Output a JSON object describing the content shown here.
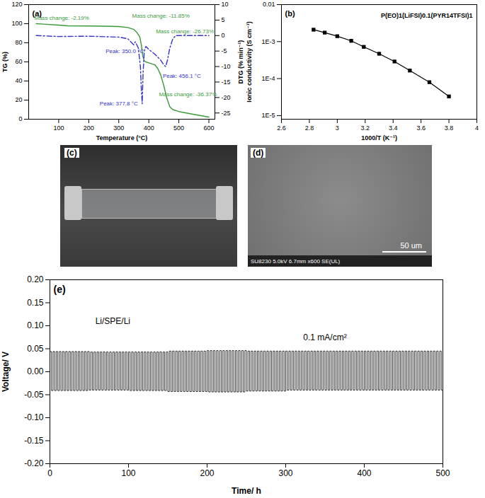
{
  "chart_data": [
    {
      "type": "line",
      "title": "(a)",
      "xlabel": "Temperature (°C)",
      "ylabel": "TG (%)",
      "y2label": "DTG (% min⁻¹)",
      "xlim": [
        0,
        620
      ],
      "xticks": [
        100,
        200,
        300,
        400,
        500,
        600
      ],
      "ylim": [
        0,
        120
      ],
      "yticks": [
        0,
        20,
        40,
        60,
        80,
        100,
        120
      ],
      "y2lim": [
        -27,
        10
      ],
      "y2ticks": [
        -25,
        -20,
        -15,
        -10,
        -5,
        0,
        5,
        10
      ],
      "series": [
        {
          "name": "TG",
          "color": "#3a9a3a",
          "line_style": "solid",
          "x": [
            25,
            50,
            100,
            130,
            200,
            250,
            300,
            330,
            350,
            360,
            370,
            375,
            380,
            385,
            390,
            400,
            420,
            430,
            440,
            450,
            460,
            470,
            480,
            500,
            550,
            600
          ],
          "values": [
            100,
            99.5,
            98.5,
            97.8,
            97.6,
            97.4,
            97,
            96,
            94,
            91,
            86,
            78,
            66,
            61,
            60,
            59,
            57,
            53,
            46,
            35,
            22,
            13,
            10,
            8,
            5,
            2.2
          ]
        },
        {
          "name": "DTG",
          "color": "#3333cc",
          "line_style": "dashdot",
          "axis": "y2",
          "x": [
            25,
            100,
            200,
            300,
            330,
            345,
            350,
            355,
            365,
            372,
            375,
            378,
            381,
            385,
            390,
            400,
            420,
            440,
            450,
            456,
            462,
            470,
            480,
            490,
            520,
            600
          ],
          "values": [
            0,
            -0.3,
            -0.2,
            -0.5,
            -1,
            -2.5,
            -3,
            -2,
            -4,
            -10,
            -17,
            -22,
            -12,
            -5,
            -3.5,
            -4.5,
            -6,
            -8,
            -9.5,
            -10,
            -8,
            -4,
            -1,
            0,
            0,
            0
          ]
        }
      ],
      "annotations": [
        {
          "text": "Mass change: -2.19%",
          "x": 110,
          "y": 106
        },
        {
          "text": "Mass change: -11.85%",
          "x": 440,
          "y": 108
        },
        {
          "text": "Mass change: -26.73%",
          "x": 520,
          "y": 92
        },
        {
          "text": "Mass change: -36.37%",
          "x": 530,
          "y": 26
        },
        {
          "text": "Peak: 350.0 °C",
          "x": 320,
          "y": -5,
          "axis": "y2"
        },
        {
          "text": "Peak: 377.8 °C",
          "x": 300,
          "y": -22,
          "axis": "y2"
        },
        {
          "text": "Peak: 456.1 °C",
          "x": 510,
          "y": -13,
          "axis": "y2"
        }
      ]
    },
    {
      "type": "line",
      "title": "(b)",
      "xlabel": "1000/T (K⁻¹)",
      "ylabel": "Ionic conductivity (S cm⁻¹)",
      "log": "y",
      "marker": "square",
      "color": "#000000",
      "xlim": [
        2.6,
        4
      ],
      "xticks": [
        2.6,
        2.8,
        3,
        3.2,
        3.4,
        3.6,
        3.8,
        4
      ],
      "ylim": [
        8e-06,
        0.01
      ],
      "yticks": [
        {
          "value": 1e-05,
          "label": "1E-5"
        },
        {
          "value": 0.0001,
          "label": "1E-4"
        },
        {
          "value": 0.001,
          "label": "1E-3"
        },
        0.01
      ],
      "x": [
        2.83,
        2.91,
        3.0,
        3.1,
        3.19,
        3.3,
        3.41,
        3.52,
        3.66,
        3.8
      ],
      "values": [
        0.0021,
        0.00175,
        0.0014,
        0.00105,
        0.00072,
        0.00047,
        0.00029,
        0.000165,
        8e-05,
        3.3e-05
      ],
      "annotations": [
        {
          "text": "P(EO)1(LiFSI)0.1(PYR14TFSI)1"
        }
      ]
    },
    {
      "type": "image",
      "title": "(c)"
    },
    {
      "type": "image",
      "title": "(d)",
      "annotations": [
        {
          "text": "SU8230 5.0kV 6.7mm x600 SE(UL)"
        },
        {
          "text": "50 um"
        }
      ]
    },
    {
      "type": "line",
      "title": "(e)",
      "xlabel": "Time/ h",
      "ylabel": "Voltage/ V",
      "color": "#000000",
      "line_style": "step",
      "xlim": [
        0,
        500
      ],
      "xticks": [
        0,
        100,
        200,
        300,
        400,
        500
      ],
      "ylim": [
        -0.2,
        0.2
      ],
      "yticks": [
        {
          "value": -0.2,
          "label": "-0.20"
        },
        -0.15,
        {
          "value": -0.1,
          "label": "-0.10"
        },
        -0.05,
        {
          "value": 0,
          "label": "0.00"
        },
        0.05,
        {
          "value": 0.1,
          "label": "0.10"
        },
        0.15,
        {
          "value": 0.2,
          "label": "0.20"
        }
      ],
      "x": [
        0,
        2,
        4,
        6,
        8,
        10,
        12,
        14,
        16,
        18,
        20,
        22,
        24,
        26,
        28,
        30,
        32,
        34,
        36,
        38,
        40,
        42,
        44,
        46,
        48,
        50,
        52,
        54,
        56,
        58,
        60,
        62,
        64,
        66,
        68,
        70,
        72,
        74,
        76,
        78,
        80,
        82,
        84,
        86,
        88,
        90,
        92,
        94,
        96,
        98,
        100,
        102,
        104,
        106,
        108,
        110,
        112,
        114,
        116,
        118,
        120,
        122,
        124,
        126,
        128,
        130,
        132,
        134,
        136,
        138,
        140,
        142,
        144,
        146,
        148,
        150,
        152,
        154,
        156,
        158,
        160,
        162,
        164,
        166,
        168,
        170,
        172,
        174,
        176,
        178,
        180,
        182,
        184,
        186,
        188,
        190,
        192,
        194,
        196,
        198,
        200,
        202,
        204,
        206,
        208,
        210,
        212,
        214,
        216,
        218,
        220,
        222,
        224,
        226,
        228,
        230,
        232,
        234,
        236,
        238,
        240,
        242,
        244,
        246,
        248,
        250,
        252,
        254,
        256,
        258,
        260,
        262,
        264,
        266,
        268,
        270,
        272,
        274,
        276,
        278,
        280,
        282,
        284,
        286,
        288,
        290,
        292,
        294,
        296,
        298,
        300,
        302,
        304,
        306,
        308,
        310,
        312,
        314,
        316,
        318,
        320,
        322,
        324,
        326,
        328,
        330,
        332,
        334,
        336,
        338,
        340,
        342,
        344,
        346,
        348,
        350,
        352,
        354,
        356,
        358,
        360,
        362,
        364,
        366,
        368,
        370,
        372,
        374,
        376,
        378,
        380,
        382,
        384,
        386,
        388,
        390,
        392,
        394,
        396,
        398,
        400,
        402,
        404,
        406,
        408,
        410,
        412,
        414,
        416,
        418,
        420,
        422,
        424,
        426,
        428,
        430,
        432,
        434,
        436,
        438,
        440,
        442,
        444,
        446,
        448,
        450,
        452,
        454,
        456,
        458,
        460,
        462,
        464,
        466,
        468,
        470,
        472,
        474,
        476,
        478,
        480,
        482,
        484,
        486,
        488,
        490,
        492,
        494,
        496,
        498,
        500
      ],
      "values": [
        0.044,
        -0.041,
        0.044,
        -0.041,
        0.044,
        -0.041,
        0.044,
        -0.041,
        0.044,
        -0.041,
        0.044,
        -0.041,
        0.044,
        -0.041,
        0.044,
        -0.041,
        0.044,
        -0.041,
        0.044,
        -0.041,
        0.044,
        -0.041,
        0.044,
        -0.041,
        0.044,
        -0.04,
        0.043,
        -0.04,
        0.043,
        -0.04,
        0.043,
        -0.04,
        0.043,
        -0.04,
        0.043,
        -0.04,
        0.043,
        -0.04,
        0.043,
        -0.04,
        0.043,
        -0.04,
        0.043,
        -0.04,
        0.043,
        -0.04,
        0.043,
        -0.04,
        0.043,
        -0.04,
        0.043,
        -0.041,
        0.043,
        -0.041,
        0.043,
        -0.041,
        0.043,
        -0.041,
        0.043,
        -0.041,
        0.043,
        -0.041,
        0.043,
        -0.041,
        0.043,
        -0.041,
        0.043,
        -0.041,
        0.043,
        -0.041,
        0.043,
        -0.041,
        0.043,
        -0.041,
        0.043,
        -0.043,
        0.045,
        -0.043,
        0.045,
        -0.043,
        0.045,
        -0.043,
        0.045,
        -0.043,
        0.045,
        -0.043,
        0.045,
        -0.043,
        0.045,
        -0.043,
        0.045,
        -0.043,
        0.045,
        -0.043,
        0.045,
        -0.043,
        0.045,
        -0.043,
        0.045,
        -0.043,
        0.046,
        -0.044,
        0.046,
        -0.044,
        0.046,
        -0.044,
        0.046,
        -0.044,
        0.046,
        -0.044,
        0.046,
        -0.044,
        0.046,
        -0.044,
        0.046,
        -0.044,
        0.046,
        -0.044,
        0.046,
        -0.044,
        0.046,
        -0.044,
        0.046,
        -0.044,
        0.046,
        -0.042,
        0.045,
        -0.042,
        0.045,
        -0.042,
        0.045,
        -0.042,
        0.045,
        -0.042,
        0.045,
        -0.042,
        0.045,
        -0.042,
        0.045,
        -0.042,
        0.045,
        -0.042,
        0.045,
        -0.042,
        0.045,
        -0.042,
        0.045,
        -0.042,
        0.045,
        -0.042,
        0.045,
        -0.04,
        0.045,
        -0.04,
        0.045,
        -0.04,
        0.045,
        -0.04,
        0.045,
        -0.04,
        0.045,
        -0.04,
        0.045,
        -0.04,
        0.045,
        -0.04,
        0.045,
        -0.04,
        0.045,
        -0.04,
        0.045,
        -0.04,
        0.045,
        -0.04,
        0.045,
        -0.04,
        0.045,
        -0.04,
        0.045,
        -0.04,
        0.045,
        -0.04,
        0.045,
        -0.04,
        0.045,
        -0.04,
        0.045,
        -0.04,
        0.045,
        -0.04,
        0.045,
        -0.04,
        0.045,
        -0.04,
        0.045,
        -0.04,
        0.045,
        -0.04,
        0.045,
        -0.04,
        0.045,
        -0.04,
        0.045,
        -0.04,
        0.045,
        -0.04,
        0.045,
        -0.04,
        0.045,
        -0.04,
        0.045,
        -0.04,
        0.045,
        -0.04,
        0.045,
        -0.04,
        0.045,
        -0.04,
        0.045,
        -0.04,
        0.045,
        -0.04,
        0.045,
        -0.04,
        0.045,
        -0.04,
        0.045,
        -0.04,
        0.045,
        -0.04,
        0.045,
        -0.04,
        0.045,
        -0.04,
        0.045,
        -0.04,
        0.045,
        -0.04,
        0.045,
        -0.04,
        0.045,
        -0.04,
        0.045,
        -0.04,
        0.045,
        -0.04,
        0.045,
        -0.04,
        0.045,
        -0.04,
        0.045
      ],
      "annotations": [
        {
          "text": "Li/SPE/Li",
          "x": 80,
          "y": 0.11
        },
        {
          "text": "0.1 mA/cm²",
          "x": 350,
          "y": 0.075
        }
      ]
    }
  ]
}
